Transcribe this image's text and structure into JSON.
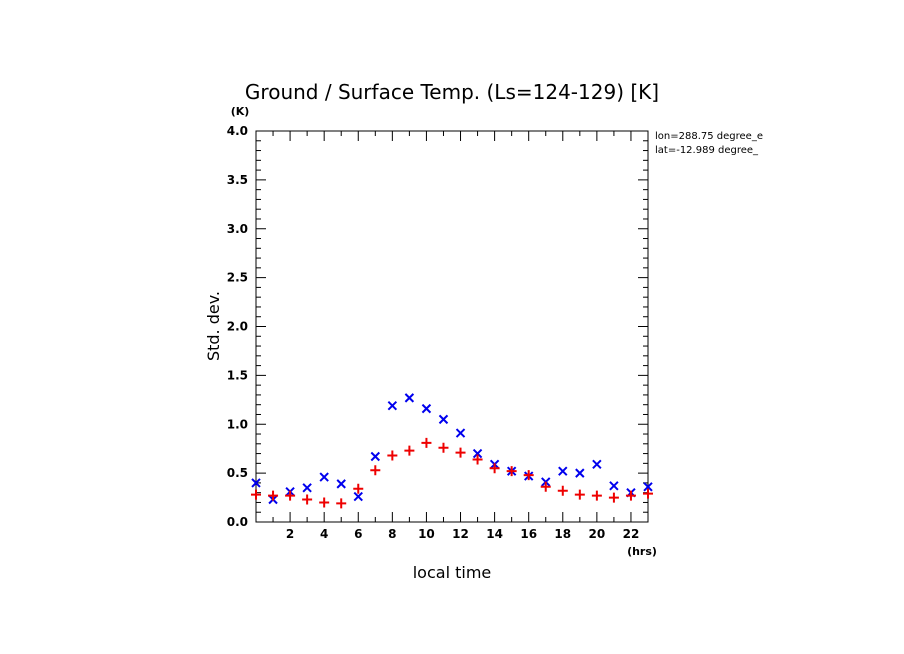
{
  "chart_data": {
    "type": "scatter",
    "title": "Ground / Surface Temp. (Ls=124-129) [K]",
    "xlabel": "local time",
    "ylabel": "Std. dev.",
    "x_unit": "(hrs)",
    "y_unit": "(K)",
    "xlim": [
      0,
      23
    ],
    "ylim": [
      0,
      4.0
    ],
    "x_ticks": [
      2,
      4,
      6,
      8,
      10,
      12,
      14,
      16,
      18,
      20,
      22
    ],
    "y_ticks": [
      0.0,
      0.5,
      1.0,
      1.5,
      2.0,
      2.5,
      3.0,
      3.5,
      4.0
    ],
    "y_tick_labels": [
      "0.0",
      "0.5",
      "1.0",
      "1.5",
      "2.0",
      "2.5",
      "3.0",
      "3.5",
      "4.0"
    ],
    "location": {
      "lon_text": "lon=288.75 degree_e",
      "lat_text": "lat=-12.989 degree_"
    },
    "series": [
      {
        "marker": "x",
        "color": "#0000ee",
        "x": [
          0,
          1,
          2,
          3,
          4,
          5,
          6,
          7,
          8,
          9,
          10,
          11,
          12,
          13,
          14,
          15,
          16,
          17,
          18,
          19,
          20,
          21,
          22,
          23
        ],
        "y": [
          0.4,
          0.23,
          0.31,
          0.35,
          0.46,
          0.39,
          0.26,
          0.67,
          1.19,
          1.27,
          1.16,
          1.05,
          0.91,
          0.7,
          0.59,
          0.52,
          0.47,
          0.41,
          0.52,
          0.5,
          0.59,
          0.37,
          0.3,
          0.36
        ]
      },
      {
        "marker": "+",
        "color": "#ee0000",
        "x": [
          0,
          1,
          2,
          3,
          4,
          5,
          6,
          7,
          8,
          9,
          10,
          11,
          12,
          13,
          14,
          15,
          16,
          17,
          18,
          19,
          20,
          21,
          22,
          23
        ],
        "y": [
          0.28,
          0.27,
          0.27,
          0.23,
          0.2,
          0.19,
          0.34,
          0.53,
          0.68,
          0.73,
          0.81,
          0.76,
          0.71,
          0.64,
          0.55,
          0.52,
          0.48,
          0.36,
          0.32,
          0.28,
          0.27,
          0.25,
          0.27,
          0.29
        ]
      }
    ]
  }
}
